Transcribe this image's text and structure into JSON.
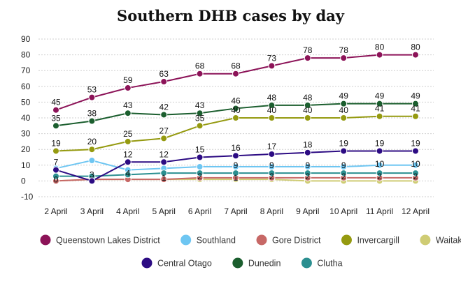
{
  "chart_data": {
    "type": "line",
    "title": "Southern DHB cases by day",
    "categories": [
      "2 April",
      "3 April",
      "4 April",
      "5 April",
      "6 April",
      "7 April",
      "8 April",
      "9 April",
      "10 April",
      "11 April",
      "12 April"
    ],
    "ylim": [
      -10,
      90
    ],
    "yticks": [
      -10,
      0,
      10,
      20,
      30,
      40,
      50,
      60,
      70,
      80,
      90
    ],
    "grid": "horizontal-dashed",
    "legend_position": "bottom",
    "series": [
      {
        "name": "Queenstown Lakes District",
        "color": "#8c1358",
        "values": [
          45,
          53,
          59,
          63,
          68,
          68,
          73,
          78,
          78,
          80,
          80
        ],
        "labels": [
          "45",
          "53",
          "59",
          "63",
          "68",
          "68",
          "73",
          "78",
          "78",
          "80",
          "80"
        ]
      },
      {
        "name": "Southland",
        "color": "#6ec6f2",
        "values": [
          8,
          13,
          7,
          8,
          9,
          9,
          9,
          9,
          9,
          10,
          10
        ],
        "labels": null
      },
      {
        "name": "Gore District",
        "color": "#c76866",
        "values": [
          0,
          1,
          1,
          1,
          2,
          2,
          2,
          2,
          2,
          2,
          2
        ],
        "labels": null
      },
      {
        "name": "Invercargill",
        "color": "#959a10",
        "values": [
          19,
          20,
          25,
          27,
          35,
          40,
          40,
          40,
          40,
          41,
          41
        ],
        "labels": [
          "19",
          "20",
          "25",
          "27",
          "35",
          "40",
          "40",
          "40",
          "40",
          "41",
          "41"
        ]
      },
      {
        "name": "Waitaki",
        "color": "#cfcc74",
        "values": [
          0,
          1,
          1,
          1,
          1,
          1,
          1,
          0,
          0,
          0,
          0
        ],
        "labels": null
      },
      {
        "name": "Central Otago",
        "color": "#2c0b83",
        "values": [
          7,
          0,
          12,
          12,
          15,
          16,
          17,
          18,
          19,
          19,
          19
        ],
        "labels": [
          "7",
          "",
          "12",
          "12",
          "15",
          "16",
          "17",
          "18",
          "19",
          "19",
          "19"
        ]
      },
      {
        "name": "Dunedin",
        "color": "#1b5e2e",
        "values": [
          35,
          38,
          43,
          42,
          43,
          46,
          48,
          48,
          49,
          49,
          49
        ],
        "labels": [
          "35",
          "38",
          "43",
          "42",
          "43",
          "46",
          "48",
          "48",
          "49",
          "49",
          "49"
        ]
      },
      {
        "name": "Clutha",
        "color": "#2b8f90",
        "values": [
          3,
          3,
          4,
          5,
          5,
          5,
          5,
          5,
          5,
          5,
          5
        ],
        "labels": null
      }
    ],
    "extra_labels": [
      {
        "category": "2 April",
        "value": 0,
        "text": "0"
      },
      {
        "category": "3 April",
        "value": 3,
        "text": "3"
      },
      {
        "category": "4 April",
        "value": 4,
        "text": "4"
      },
      {
        "category": "5 April",
        "value": 1,
        "text": "1"
      },
      {
        "category": "6 April",
        "value": 2,
        "text": "2"
      },
      {
        "category": "7 April",
        "value": 9,
        "text": "9"
      },
      {
        "category": "7 April",
        "value": 1,
        "text": "1"
      },
      {
        "category": "8 April",
        "value": 9,
        "text": "9"
      },
      {
        "category": "8 April",
        "value": 2,
        "text": "2"
      },
      {
        "category": "9 April",
        "value": 9,
        "text": "9"
      },
      {
        "category": "9 April",
        "value": 2,
        "text": "2"
      },
      {
        "category": "10 April",
        "value": 9,
        "text": "9"
      },
      {
        "category": "10 April",
        "value": 2,
        "text": "2"
      },
      {
        "category": "11 April",
        "value": 10,
        "text": "10"
      },
      {
        "category": "11 April",
        "value": 2,
        "text": "2"
      },
      {
        "category": "12 April",
        "value": 10,
        "text": "10"
      },
      {
        "category": "12 April",
        "value": 2,
        "text": "2"
      }
    ],
    "legend_rows": [
      [
        "Queenstown Lakes District",
        "Southland",
        "Gore District",
        "Invercargill",
        "Waitaki"
      ],
      [
        "Central Otago",
        "Dunedin",
        "Clutha"
      ]
    ]
  }
}
